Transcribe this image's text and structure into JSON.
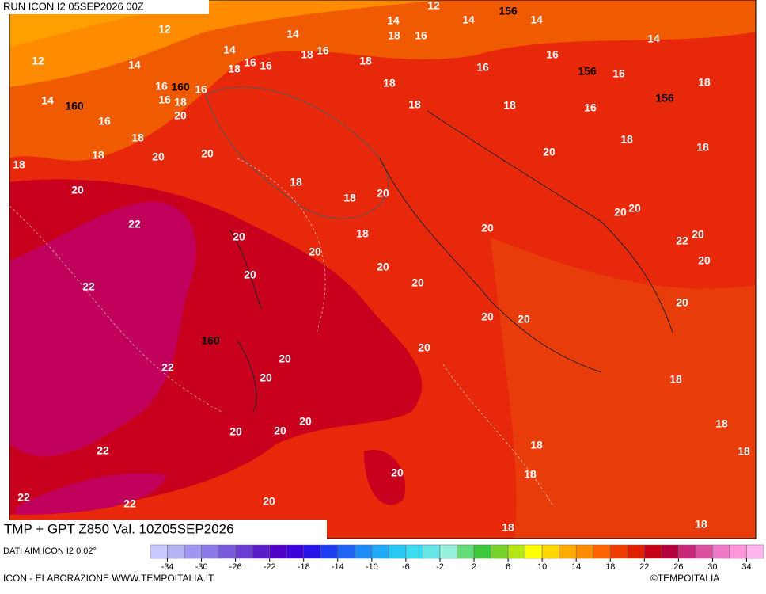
{
  "header": {
    "run": "RUN ICON I2 05SEP2026 00Z"
  },
  "map": {
    "title": "TMP + GPT Z850 Val. 10Z05SEP2026",
    "temperature_labels": [
      12,
      14,
      14,
      14,
      12,
      14,
      18,
      16,
      14,
      12,
      14,
      14,
      16,
      16,
      18,
      18,
      16,
      18,
      16,
      16,
      16,
      18,
      16,
      16,
      18,
      16,
      20,
      18,
      18,
      18,
      16,
      14,
      16,
      18,
      18,
      20,
      20,
      18,
      18,
      18,
      20,
      20,
      18,
      18,
      20,
      20,
      20,
      22,
      18,
      20,
      20,
      20,
      20,
      22,
      20,
      20,
      20,
      20,
      22,
      20,
      20,
      20,
      20,
      22,
      20,
      20,
      18,
      20,
      20,
      20,
      18,
      22,
      18,
      18,
      20,
      18,
      22,
      22,
      20,
      18,
      18
    ],
    "geopotential_labels": [
      156,
      160,
      160,
      156,
      156,
      160
    ]
  },
  "legend": {
    "source": "DATI AIM ICON I2 0.02°",
    "ticks": [
      -34,
      -30,
      -26,
      -22,
      -18,
      -14,
      -10,
      -6,
      -2,
      2,
      6,
      10,
      14,
      18,
      22,
      26,
      30,
      34
    ],
    "colors": [
      "#c8c8ff",
      "#b4b4f5",
      "#a096f0",
      "#8c78e6",
      "#7a5adc",
      "#6a3cd2",
      "#5a1ec8",
      "#5000c8",
      "#3c00dc",
      "#2814e6",
      "#1e3cf0",
      "#1e64f5",
      "#1e8cf5",
      "#1eaaf5",
      "#28c8f5",
      "#3cdcf0",
      "#64e6e6",
      "#96f0dc",
      "#64dc78",
      "#3cc83c",
      "#78d228",
      "#b4e614",
      "#ffff00",
      "#ffd700",
      "#ffaa00",
      "#ff8c00",
      "#ff6400",
      "#f03c00",
      "#e01e00",
      "#c80014",
      "#b4003c",
      "#c82878",
      "#dc50a0",
      "#f078c8",
      "#ff96dc",
      "#ffb4f0"
    ]
  },
  "footer": {
    "credit": "ICON - ELABORAZIONE WWW.TEMPOITALIA.IT",
    "logo": "©TEMPOITALIA"
  }
}
